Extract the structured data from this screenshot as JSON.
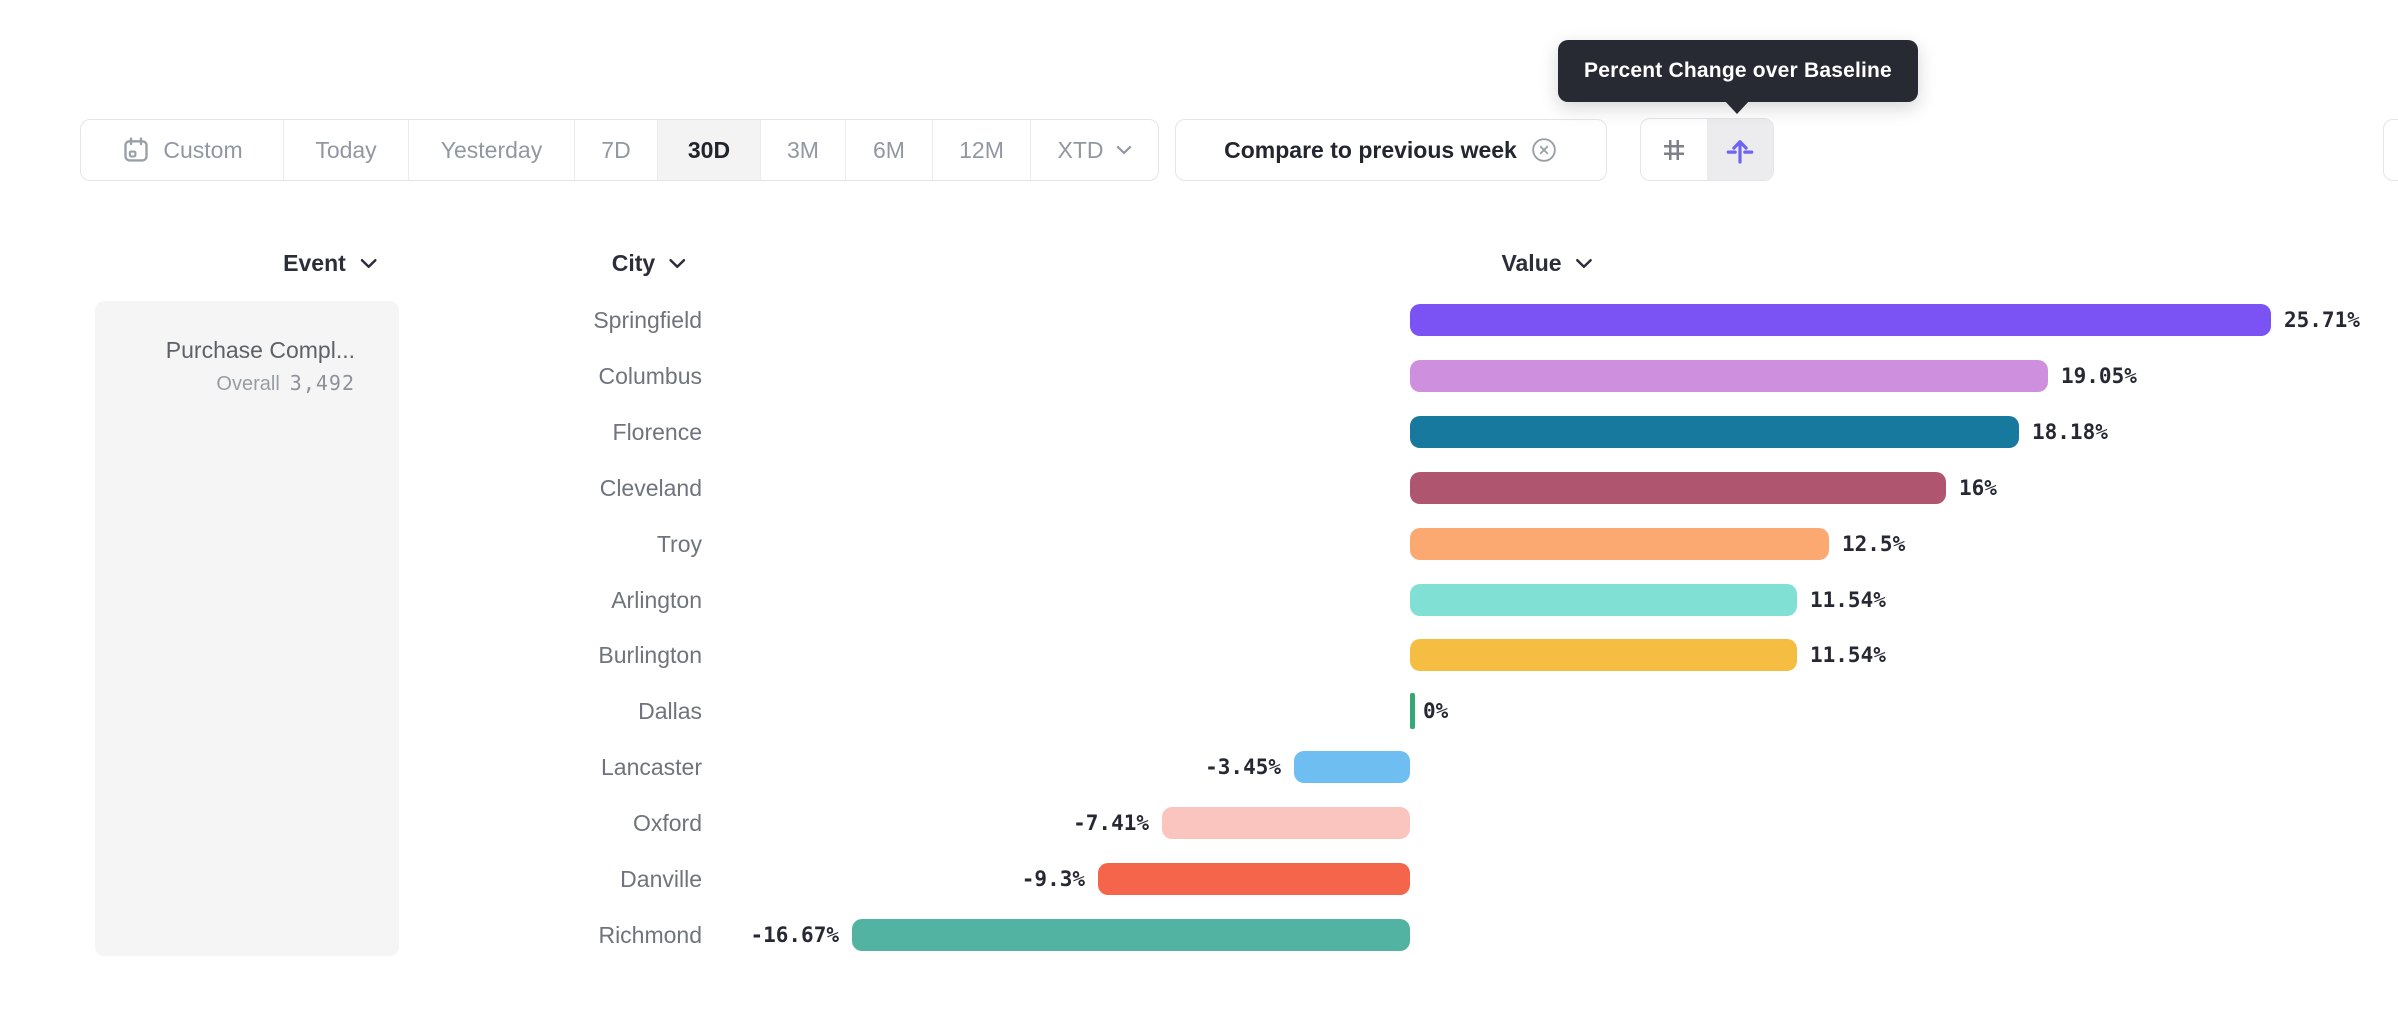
{
  "tooltip": {
    "text": "Percent Change over Baseline"
  },
  "toolbar": {
    "date_ranges": [
      {
        "label": "Custom",
        "icon": "calendar-icon",
        "selected": false
      },
      {
        "label": "Today",
        "selected": false
      },
      {
        "label": "Yesterday",
        "selected": false
      },
      {
        "label": "7D",
        "selected": false
      },
      {
        "label": "30D",
        "selected": true
      },
      {
        "label": "3M",
        "selected": false
      },
      {
        "label": "6M",
        "selected": false
      },
      {
        "label": "12M",
        "selected": false
      },
      {
        "label": "XTD",
        "icon": "chevron-down-icon",
        "selected": false
      }
    ],
    "compare_filter": {
      "label": "Compare to previous week",
      "icon": "circle-x-icon"
    },
    "view_toggle": {
      "options": [
        {
          "name": "absolute-numbers",
          "icon": "hash-icon",
          "selected": false
        },
        {
          "name": "percent-change-over-baseline",
          "icon": "flip-arrow-icon",
          "selected": true
        }
      ],
      "accent_color": "#6F63F2",
      "icon_gray": "#7D828A"
    }
  },
  "columns": {
    "event": "Event",
    "city": "City",
    "value": "Value"
  },
  "event_panel": {
    "title": "Purchase Compl...",
    "overall_label": "Overall",
    "overall_value": "3,492"
  },
  "chart_data": {
    "type": "bar",
    "orientation": "horizontal",
    "title": "Percent Change over Baseline",
    "unit": "percent",
    "baseline": 0,
    "xlim": [
      -16.67,
      25.71
    ],
    "grid": false,
    "categories": [
      "Springfield",
      "Columbus",
      "Florence",
      "Cleveland",
      "Troy",
      "Arlington",
      "Burlington",
      "Dallas",
      "Lancaster",
      "Oxford",
      "Danville",
      "Richmond"
    ],
    "values": [
      25.71,
      19.05,
      18.18,
      16,
      12.5,
      11.54,
      11.54,
      0,
      -3.45,
      -7.41,
      -9.3,
      -16.67
    ],
    "value_labels": [
      "25.71%",
      "19.05%",
      "18.18%",
      "16%",
      "12.5%",
      "11.54%",
      "11.54%",
      "0%",
      "-3.45%",
      "-7.41%",
      "-9.3%",
      "-16.67%"
    ],
    "bar_colors": [
      "#7B52F4",
      "#CE8FDF",
      "#17799E",
      "#AF5570",
      "#FBA971",
      "#80E0D4",
      "#F5BE43",
      "#35A873",
      "#6FBEF2",
      "#FBC5BF",
      "#F4654B",
      "#53B3A3"
    ]
  }
}
